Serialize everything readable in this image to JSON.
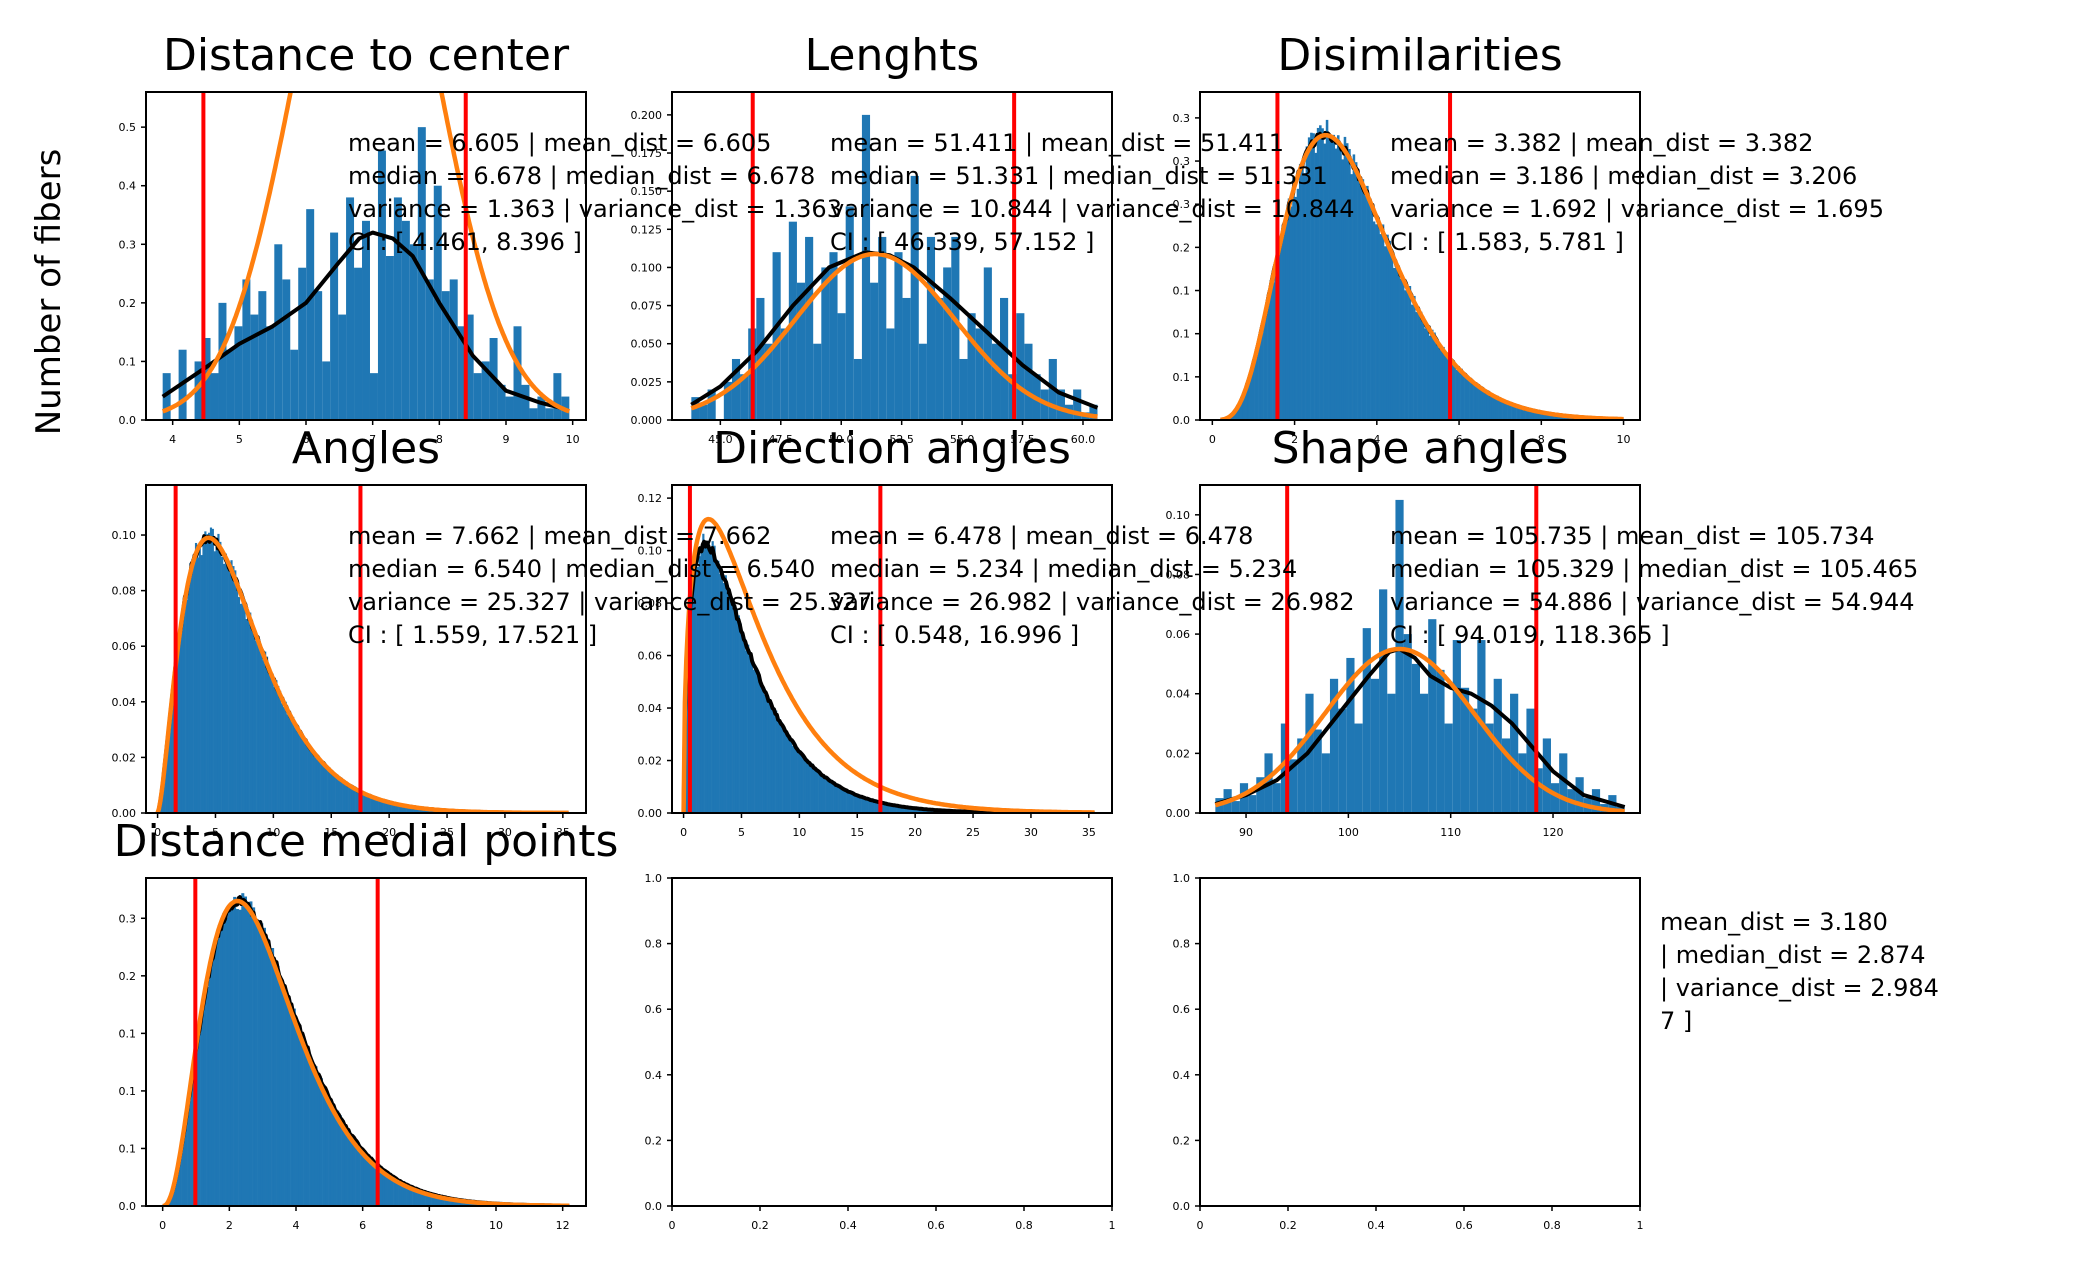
{
  "figure": {
    "ylabel": "Number of fibers"
  },
  "colors": {
    "hist": "#1f77b4",
    "kde": "#000000",
    "fit": "#ff7f0e",
    "ci": "#ff0000"
  },
  "chart_data": [
    {
      "type": "bar",
      "title": "Distance to center",
      "xlim": [
        3.6,
        10.2
      ],
      "ylim": [
        0,
        0.56
      ],
      "xticks": [
        4,
        5,
        6,
        7,
        8,
        9,
        10
      ],
      "yticks": [
        0.0,
        0.1,
        0.2,
        0.3,
        0.4,
        0.5
      ],
      "ci_lines": [
        4.461,
        8.396
      ],
      "hist": {
        "start": 3.85,
        "end": 9.95,
        "values": [
          0.08,
          0,
          0.12,
          0,
          0.1,
          0.14,
          0.08,
          0.2,
          0.12,
          0.16,
          0.24,
          0.18,
          0.22,
          0.16,
          0.3,
          0.24,
          0.12,
          0.26,
          0.36,
          0.22,
          0.1,
          0.32,
          0.18,
          0.38,
          0.26,
          0.34,
          0.08,
          0.46,
          0.28,
          0.38,
          0.34,
          0.3,
          0.5,
          0.24,
          0.4,
          0.22,
          0.24,
          0.16,
          0.18,
          0.08,
          0.1,
          0.14,
          0.06,
          0.04,
          0.16,
          0.06,
          0.02,
          0.04,
          0.02,
          0.08,
          0.04
        ]
      },
      "kde": {
        "x": [
          3.85,
          4.5,
          5.0,
          5.5,
          6.0,
          6.5,
          6.8,
          7.0,
          7.3,
          7.6,
          8.0,
          8.5,
          9.0,
          9.5,
          9.85
        ],
        "y": [
          0.04,
          0.09,
          0.13,
          0.16,
          0.2,
          0.27,
          0.31,
          0.32,
          0.31,
          0.28,
          0.2,
          0.11,
          0.05,
          0.03,
          0.02
        ]
      },
      "fit": {
        "mean": 6.9,
        "sd": 1.05,
        "scale": 1.0
      },
      "stats": [
        {
          "text": "mean = 6.605   |   mean_dist = 6.605"
        },
        {
          "text": "median = 6.678   |   median_dist = 6.678"
        },
        {
          "text": "variance = 1.363   |   variance_dist = 1.363"
        },
        {
          "text": "CI : [ 4.461, 8.396 ]"
        }
      ]
    },
    {
      "type": "bar",
      "title": "Lenghts",
      "xlim": [
        43.0,
        61.2
      ],
      "ylim": [
        0,
        0.215
      ],
      "xticks": [
        45.0,
        47.5,
        50.0,
        52.5,
        55.0,
        57.5,
        60.0
      ],
      "xticklabels": [
        "45.0",
        "47.5",
        "50.0",
        "52.5",
        "55.0",
        "57.5",
        "60.0"
      ],
      "yticks": [
        0.0,
        0.025,
        0.05,
        0.075,
        0.1,
        0.125,
        0.15,
        0.175,
        0.2
      ],
      "yticklabels": [
        "0.000",
        "0.025",
        "0.050",
        "0.075",
        "0.100",
        "0.125",
        "0.150",
        "0.175",
        "0.200"
      ],
      "ci_lines": [
        46.339,
        57.152
      ],
      "hist": {
        "start": 43.8,
        "end": 60.6,
        "values": [
          0.015,
          0.01,
          0.02,
          0,
          0.025,
          0.04,
          0.03,
          0.06,
          0.08,
          0.05,
          0.11,
          0.06,
          0.13,
          0.09,
          0.12,
          0.05,
          0.1,
          0.11,
          0.07,
          0.14,
          0.04,
          0.2,
          0.09,
          0.12,
          0.06,
          0.11,
          0.08,
          0.16,
          0.05,
          0.12,
          0.08,
          0.1,
          0.12,
          0.04,
          0.07,
          0.06,
          0.1,
          0.05,
          0.08,
          0.03,
          0.07,
          0.05,
          0.03,
          0.02,
          0.04,
          0.02,
          0.01,
          0.02,
          0.005,
          0.01
        ]
      },
      "kde": {
        "x": [
          43.8,
          45,
          46.5,
          48,
          49.5,
          51,
          52,
          53,
          54.5,
          56,
          57.5,
          59,
          60.6
        ],
        "y": [
          0.01,
          0.022,
          0.045,
          0.075,
          0.1,
          0.11,
          0.108,
          0.1,
          0.08,
          0.058,
          0.036,
          0.018,
          0.008
        ]
      },
      "fit": {
        "mean": 51.4,
        "sd": 3.3,
        "scale": 0.1088
      },
      "stats": [
        {
          "text": "mean = 51.411   |   mean_dist = 51.411"
        },
        {
          "text": "median = 51.331   |   median_dist = 51.331"
        },
        {
          "text": "variance = 10.844   |   variance_dist = 10.844"
        },
        {
          "text": "CI : [ 46.339, 57.152 ]"
        }
      ]
    },
    {
      "type": "bar",
      "title": "Disimilarities",
      "xlim": [
        -0.3,
        10.4
      ],
      "ylim": [
        0,
        0.38
      ],
      "xticks": [
        0,
        2,
        4,
        6,
        8,
        10
      ],
      "yticks": [
        0.0,
        0.05,
        0.1,
        0.15,
        0.2,
        0.25,
        0.3,
        0.35
      ],
      "ci_lines": [
        1.583,
        5.781
      ],
      "dist": {
        "k": 5.3,
        "theta": 0.64,
        "scale": 0.33,
        "start": 0.2,
        "end": 10.0,
        "bins": 180,
        "jitter": 0.06
      },
      "fit": {
        "k": 5.3,
        "theta": 0.64,
        "scale": 0.33,
        "offset": 0.0
      },
      "stats": [
        {
          "text": "mean = 3.382   |   mean_dist = 3.382"
        },
        {
          "text": "median = 3.186   |   median_dist = 3.206"
        },
        {
          "text": "variance = 1.692   |   variance_dist = 1.695"
        },
        {
          "text": "CI : [ 1.583, 5.781 ]"
        }
      ]
    },
    {
      "type": "bar",
      "title": "Angles",
      "xlim": [
        -1.0,
        37.0
      ],
      "ylim": [
        0,
        0.118
      ],
      "xticks": [
        0,
        5,
        10,
        15,
        20,
        25,
        30,
        35
      ],
      "yticks": [
        0.0,
        0.02,
        0.04,
        0.06,
        0.08,
        0.1
      ],
      "ci_lines": [
        1.559,
        17.521
      ],
      "dist": {
        "k": 2.6,
        "theta": 2.75,
        "scale": 0.099,
        "start": 0.0,
        "end": 35.5,
        "bins": 220,
        "jitter": 0.05
      },
      "fit": {
        "k": 2.6,
        "theta": 2.75,
        "scale": 0.099,
        "offset": 0.0
      },
      "stats": [
        {
          "text": "mean = 7.662   |   mean_dist = 7.662"
        },
        {
          "text": "median = 6.540   |   median_dist = 6.540"
        },
        {
          "text": "variance = 25.327   |   variance_dist = 25.327"
        },
        {
          "text": "CI : [ 1.559, 17.521 ]"
        }
      ]
    },
    {
      "type": "bar",
      "title": "Direction angles",
      "xlim": [
        -1.0,
        37.0
      ],
      "ylim": [
        0,
        0.125
      ],
      "xticks": [
        0,
        5,
        10,
        15,
        20,
        25,
        30,
        35
      ],
      "yticks": [
        0.0,
        0.02,
        0.04,
        0.06,
        0.08,
        0.1,
        0.12
      ],
      "ci_lines": [
        0.548,
        16.996
      ],
      "dist": {
        "k": 1.55,
        "theta": 3.4,
        "scale": 0.102,
        "start": 0.0,
        "end": 35.5,
        "bins": 220,
        "jitter": 0.05
      },
      "fit": {
        "k": 1.5,
        "theta": 4.3,
        "scale": 0.112,
        "offset": 0.0
      },
      "stats": [
        {
          "text": "mean = 6.478   |   mean_dist = 6.478"
        },
        {
          "text": "median = 5.234   |   median_dist = 5.234"
        },
        {
          "text": "variance = 26.982   |   variance_dist = 26.982"
        },
        {
          "text": "CI : [ 0.548, 16.996 ]"
        }
      ]
    },
    {
      "type": "bar",
      "title": "Shape angles",
      "xlim": [
        85.5,
        128.5
      ],
      "ylim": [
        0,
        0.11
      ],
      "xticks": [
        90,
        100,
        110,
        120
      ],
      "yticks": [
        0.0,
        0.02,
        0.04,
        0.06,
        0.08,
        0.1
      ],
      "ci_lines": [
        94.019,
        118.365
      ],
      "hist": {
        "start": 87.0,
        "end": 127.0,
        "values": [
          0.005,
          0.008,
          0.004,
          0.01,
          0.006,
          0.012,
          0.02,
          0.01,
          0.03,
          0.018,
          0.025,
          0.04,
          0.028,
          0.02,
          0.045,
          0.035,
          0.052,
          0.03,
          0.062,
          0.045,
          0.075,
          0.04,
          0.105,
          0.06,
          0.05,
          0.04,
          0.065,
          0.048,
          0.03,
          0.058,
          0.042,
          0.035,
          0.058,
          0.03,
          0.045,
          0.025,
          0.04,
          0.02,
          0.035,
          0.015,
          0.025,
          0.01,
          0.02,
          0.008,
          0.012,
          0.005,
          0.008,
          0.003,
          0.006,
          0.002
        ]
      },
      "kde": {
        "x": [
          87,
          90,
          93,
          96,
          99,
          102,
          104,
          105,
          106.5,
          108,
          110,
          112,
          114,
          116,
          118,
          120,
          123,
          127
        ],
        "y": [
          0.003,
          0.006,
          0.011,
          0.02,
          0.033,
          0.046,
          0.054,
          0.055,
          0.052,
          0.046,
          0.042,
          0.04,
          0.036,
          0.03,
          0.022,
          0.014,
          0.006,
          0.002
        ]
      },
      "fit": {
        "mean": 105.0,
        "sd": 7.3,
        "scale": 0.055
      },
      "stats": [
        {
          "text": "mean = 105.735   |   mean_dist = 105.734"
        },
        {
          "text": "median = 105.329   |   median_dist = 105.465"
        },
        {
          "text": "variance = 54.886   |   variance_dist = 54.944"
        },
        {
          "text": "CI : [ 94.019, 118.365 ]"
        }
      ]
    },
    {
      "type": "bar",
      "title": "Distance medial points",
      "xlim": [
        -0.5,
        12.7
      ],
      "ylim": [
        0,
        0.285
      ],
      "xticks": [
        0,
        2,
        4,
        6,
        8,
        10,
        12
      ],
      "yticks": [
        0.0,
        0.05,
        0.1,
        0.15,
        0.2,
        0.25
      ],
      "ci_lines": [
        0.98,
        6.45
      ],
      "dist": {
        "k": 3.55,
        "theta": 0.895,
        "scale": 0.265,
        "start": 0.0,
        "end": 12.2,
        "bins": 150,
        "jitter": 0.03
      },
      "fit": {
        "k": 3.55,
        "theta": 0.88,
        "scale": 0.265,
        "offset": 0.0
      },
      "stats": [
        {
          "text": "mean_dist = 3.180"
        },
        {
          "text": "|   median_dist = 2.874"
        },
        {
          "text": "|   variance_dist = 2.984"
        },
        {
          "text": "7 ]"
        }
      ]
    },
    {
      "type": "bar",
      "title": "",
      "xlim": [
        0,
        1
      ],
      "ylim": [
        0,
        1
      ],
      "xticks": [
        0.0,
        0.2,
        0.4,
        0.6,
        0.8,
        1.0
      ],
      "yticks": [
        0.0,
        0.2,
        0.4,
        0.6,
        0.8,
        1.0
      ]
    },
    {
      "type": "bar",
      "title": "",
      "xlim": [
        0,
        1
      ],
      "ylim": [
        0,
        1
      ],
      "xticks": [
        0.0,
        0.2,
        0.4,
        0.6,
        0.8,
        1.0
      ],
      "yticks": [
        0.0,
        0.2,
        0.4,
        0.6,
        0.8,
        1.0
      ]
    }
  ]
}
